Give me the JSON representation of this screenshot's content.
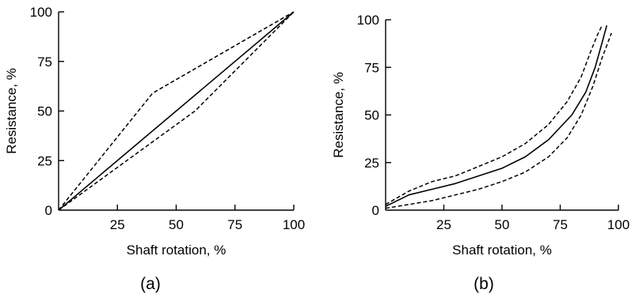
{
  "chart_data": [
    {
      "panel_label": "(a)",
      "type": "line",
      "xlabel": "Shaft rotation, %",
      "ylabel": "Resistance, %",
      "xlim": [
        0,
        100
      ],
      "ylim": [
        0,
        100
      ],
      "x_ticks": [
        "25",
        "50",
        "75",
        "100"
      ],
      "y_ticks": [
        "0",
        "25",
        "50",
        "75",
        "100"
      ],
      "series": [
        {
          "style": "solid",
          "points": [
            [
              0,
              0
            ],
            [
              100,
              100
            ]
          ]
        },
        {
          "style": "dashed",
          "points": [
            [
              0,
              0
            ],
            [
              40,
              59
            ],
            [
              100,
              100
            ]
          ]
        },
        {
          "style": "dashed",
          "points": [
            [
              0,
              0
            ],
            [
              58,
              50
            ],
            [
              100,
              100
            ]
          ]
        }
      ]
    },
    {
      "panel_label": "(b)",
      "type": "line",
      "xlabel": "Shaft rotation, %",
      "ylabel": "Resistance, %",
      "xlim": [
        0,
        100
      ],
      "ylim": [
        0,
        100
      ],
      "x_ticks": [
        "25",
        "50",
        "75",
        "100"
      ],
      "y_ticks": [
        "0",
        "25",
        "50",
        "75",
        "100"
      ],
      "series": [
        {
          "style": "solid",
          "points": [
            [
              0,
              2
            ],
            [
              10,
              8
            ],
            [
              20,
              11
            ],
            [
              30,
              14
            ],
            [
              40,
              18
            ],
            [
              50,
              22
            ],
            [
              60,
              28
            ],
            [
              70,
              37
            ],
            [
              80,
              50
            ],
            [
              86,
              62
            ],
            [
              90,
              75
            ],
            [
              93,
              88
            ],
            [
              95,
              97
            ]
          ]
        },
        {
          "style": "dashed",
          "points": [
            [
              0,
              3
            ],
            [
              10,
              10
            ],
            [
              20,
              15
            ],
            [
              30,
              18
            ],
            [
              40,
              23
            ],
            [
              50,
              28
            ],
            [
              60,
              35
            ],
            [
              70,
              45
            ],
            [
              78,
              57
            ],
            [
              84,
              70
            ],
            [
              88,
              83
            ],
            [
              91,
              92
            ],
            [
              93,
              97
            ]
          ]
        },
        {
          "style": "dashed",
          "points": [
            [
              0,
              1
            ],
            [
              10,
              3
            ],
            [
              20,
              5
            ],
            [
              30,
              8
            ],
            [
              40,
              11
            ],
            [
              50,
              15
            ],
            [
              60,
              20
            ],
            [
              70,
              28
            ],
            [
              78,
              38
            ],
            [
              84,
              50
            ],
            [
              89,
              65
            ],
            [
              93,
              80
            ],
            [
              97,
              93
            ]
          ]
        }
      ]
    }
  ]
}
